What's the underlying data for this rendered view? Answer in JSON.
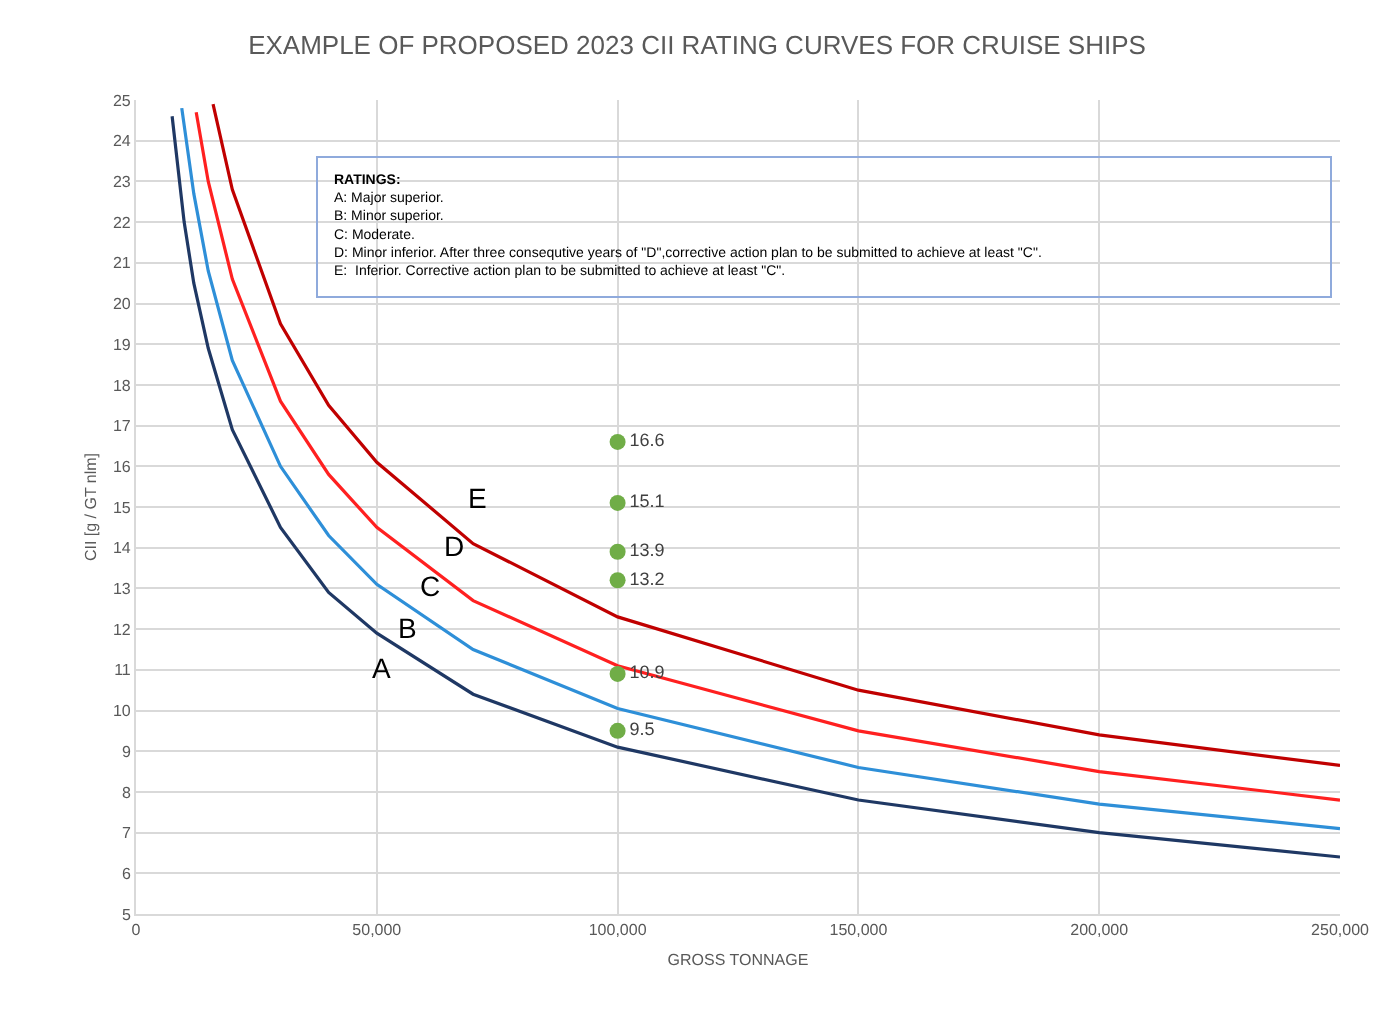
{
  "chart_data": {
    "type": "line",
    "title": "EXAMPLE OF PROPOSED 2023 CII RATING CURVES FOR CRUISE SHIPS",
    "xlabel": "GROSS TONNAGE",
    "ylabel": "CII [g / GT nlm]",
    "xlim": [
      0,
      250000
    ],
    "xticks": [
      0,
      {
        "value": 50000,
        "label": "50,000"
      },
      {
        "value": 100000,
        "label": "100,000"
      },
      {
        "value": 150000,
        "label": "150,000"
      },
      {
        "value": 200000,
        "label": "200,000"
      },
      {
        "value": 250000,
        "label": "250,000"
      }
    ],
    "ylim": [
      5,
      25
    ],
    "yticks": [
      5,
      6,
      7,
      8,
      9,
      10,
      11,
      12,
      13,
      14,
      15,
      16,
      17,
      18,
      19,
      20,
      21,
      22,
      23,
      24,
      25
    ],
    "grid": true,
    "marker": "none",
    "line_style": "solid",
    "series": [
      {
        "color": "#1f3864",
        "x": [
          7500,
          10000,
          12000,
          15000,
          20000,
          30000,
          40000,
          50000,
          70000,
          100000,
          150000,
          200000,
          250000
        ],
        "values": [
          24.6,
          22.0,
          20.5,
          18.9,
          16.9,
          14.5,
          12.9,
          11.9,
          10.4,
          9.1,
          7.8,
          7.0,
          6.4
        ]
      },
      {
        "color": "#2e8fd8",
        "x": [
          9500,
          12000,
          15000,
          20000,
          30000,
          40000,
          50000,
          70000,
          100000,
          150000,
          200000,
          250000
        ],
        "values": [
          24.8,
          22.7,
          20.8,
          18.6,
          16.0,
          14.3,
          13.1,
          11.5,
          10.05,
          8.6,
          7.7,
          7.1
        ]
      },
      {
        "color": "#ff2020",
        "x": [
          12500,
          15000,
          20000,
          30000,
          40000,
          50000,
          70000,
          100000,
          150000,
          200000,
          250000
        ],
        "values": [
          24.7,
          23.0,
          20.6,
          17.6,
          15.8,
          14.5,
          12.7,
          11.1,
          9.5,
          8.5,
          7.8
        ]
      },
      {
        "color": "#c00000",
        "x": [
          16000,
          20000,
          30000,
          40000,
          50000,
          70000,
          100000,
          150000,
          200000,
          250000
        ],
        "values": [
          24.9,
          22.8,
          19.5,
          17.5,
          16.1,
          14.1,
          12.3,
          10.5,
          9.4,
          8.65
        ]
      },
      {
        "type": "scatter",
        "marker": "circle",
        "color": "#70ad47",
        "data_labels": true,
        "x": [
          100000,
          100000,
          100000,
          100000,
          100000,
          100000
        ],
        "values": [
          16.6,
          15.1,
          13.9,
          13.2,
          10.9,
          9.5
        ]
      }
    ],
    "annotations": [
      "A",
      "B",
      "C",
      "D",
      "E",
      "RATINGS:\nA: Major superior.\nB: Minor superior.\nC: Moderate.\nD: Minor inferior. After three consequtive years of \"D\",corrective action plan to be submitted to achieve at least \"C\".\nE:  Inferior. Corrective action plan to be submitted to achieve at least \"C\"."
    ]
  }
}
